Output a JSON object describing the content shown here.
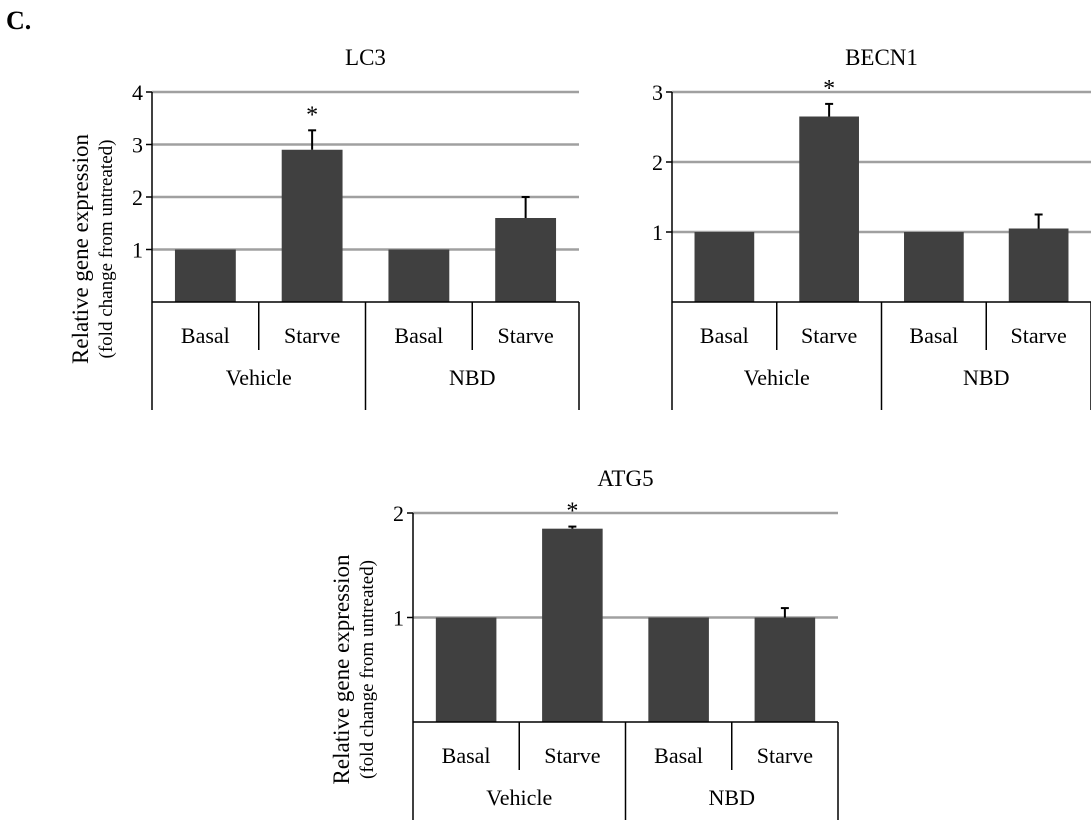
{
  "panel_label": "C.",
  "chart_data": [
    {
      "type": "bar",
      "title": "LC3",
      "ylabel": "Relative gene expression",
      "ylabel_sub": "(fold change from untreated)",
      "categories": [
        "Basal",
        "Starve",
        "Basal",
        "Starve"
      ],
      "groups": [
        {
          "label": "Vehicle",
          "categories": [
            "Basal",
            "Starve"
          ]
        },
        {
          "label": "NBD",
          "categories": [
            "Basal",
            "Starve"
          ]
        }
      ],
      "values": [
        1.0,
        2.9,
        1.0,
        1.6
      ],
      "errors": [
        0,
        0.37,
        0,
        0.4
      ],
      "significance": [
        "",
        "*",
        "",
        ""
      ],
      "ylim": [
        0,
        4
      ],
      "yticks": [
        "1",
        "2",
        "3",
        "4"
      ],
      "ytick_values": [
        1,
        2,
        3,
        4
      ],
      "grid": true,
      "bar_color": "#404040",
      "grid_color": "#a0a0a0"
    },
    {
      "type": "bar",
      "title": "BECN1",
      "ylabel": "",
      "ylabel_sub": "",
      "categories": [
        "Basal",
        "Starve",
        "Basal",
        "Starve"
      ],
      "groups": [
        {
          "label": "Vehicle",
          "categories": [
            "Basal",
            "Starve"
          ]
        },
        {
          "label": "NBD",
          "categories": [
            "Basal",
            "Starve"
          ]
        }
      ],
      "values": [
        1.0,
        2.65,
        1.0,
        1.05
      ],
      "errors": [
        0,
        0.18,
        0,
        0.2
      ],
      "significance": [
        "",
        "*",
        "",
        ""
      ],
      "ylim": [
        0,
        3
      ],
      "yticks": [
        "1",
        "2",
        "3"
      ],
      "ytick_values": [
        1,
        2,
        3
      ],
      "grid": true,
      "bar_color": "#404040",
      "grid_color": "#a0a0a0"
    },
    {
      "type": "bar",
      "title": "ATG5",
      "ylabel": "Relative gene expression",
      "ylabel_sub": "(fold change from untreated)",
      "categories": [
        "Basal",
        "Starve",
        "Basal",
        "Starve"
      ],
      "groups": [
        {
          "label": "Vehicle",
          "categories": [
            "Basal",
            "Starve"
          ]
        },
        {
          "label": "NBD",
          "categories": [
            "Basal",
            "Starve"
          ]
        }
      ],
      "values": [
        1.0,
        1.85,
        1.0,
        1.0
      ],
      "errors": [
        0,
        0.02,
        0,
        0.09
      ],
      "significance": [
        "",
        "*",
        "",
        ""
      ],
      "ylim": [
        0,
        2
      ],
      "yticks": [
        "1",
        "2"
      ],
      "ytick_values": [
        1,
        2
      ],
      "grid": true,
      "bar_color": "#404040",
      "grid_color": "#a0a0a0"
    }
  ]
}
